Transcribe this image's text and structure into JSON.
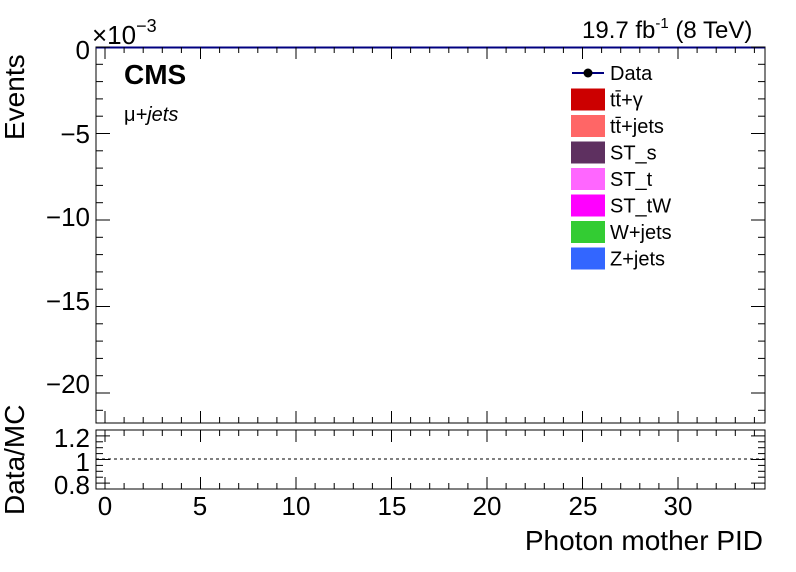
{
  "header": {
    "lumi": "19.7 fb",
    "lumi_exp": "-1",
    "energy": "(8 TeV)",
    "experiment": "CMS",
    "channel_mu": "μ",
    "channel_jets": "+jets"
  },
  "upper_panel": {
    "ylabel": "Events",
    "multiplier_base": "×10",
    "multiplier_exp": "−3",
    "yticks": [
      "0",
      "−5",
      "−10",
      "−15",
      "−20"
    ],
    "legend": [
      {
        "label": "Data",
        "kind": "marker",
        "color": "#000080"
      },
      {
        "label": "tt̄+γ",
        "kind": "box",
        "color": "#cc0000"
      },
      {
        "label": "tt̄+jets",
        "kind": "box",
        "color": "#ff6666"
      },
      {
        "label": "ST_s",
        "kind": "box",
        "color": "#5e3060"
      },
      {
        "label": "ST_t",
        "kind": "box",
        "color": "#ff66ff"
      },
      {
        "label": "ST_tW",
        "kind": "box",
        "color": "#ff00ff"
      },
      {
        "label": "W+jets",
        "kind": "box",
        "color": "#33cc33"
      },
      {
        "label": "Z+jets",
        "kind": "box",
        "color": "#3366ff"
      }
    ]
  },
  "lower_panel": {
    "ylabel": "Data/MC",
    "yticks": [
      "1.2",
      "1",
      "0.8"
    ],
    "xlabel": "Photon mother PID",
    "xticks": [
      "0",
      "5",
      "10",
      "15",
      "20",
      "25",
      "30"
    ]
  },
  "chart_data": {
    "type": "bar",
    "title": "",
    "xlabel": "Photon mother PID",
    "ylabel": "Events",
    "xlim": [
      -0.5,
      34.5
    ],
    "ylim": [
      -0.0225,
      0.0
    ],
    "y_multiplier": "1e-3",
    "series": [
      {
        "name": "Data",
        "x": [],
        "values": []
      },
      {
        "name": "tt̄+γ",
        "x": [],
        "values": []
      },
      {
        "name": "tt̄+jets",
        "x": [],
        "values": []
      },
      {
        "name": "ST_s",
        "x": [],
        "values": []
      },
      {
        "name": "ST_t",
        "x": [],
        "values": []
      },
      {
        "name": "ST_tW",
        "x": [],
        "values": []
      },
      {
        "name": "W+jets",
        "x": [],
        "values": []
      },
      {
        "name": "Z+jets",
        "x": [],
        "values": []
      }
    ],
    "ratio": {
      "ylabel": "Data/MC",
      "ylim": [
        0.75,
        1.25
      ],
      "reference_line": 1.0,
      "values": []
    },
    "grid": false,
    "legend_position": "top-right"
  }
}
